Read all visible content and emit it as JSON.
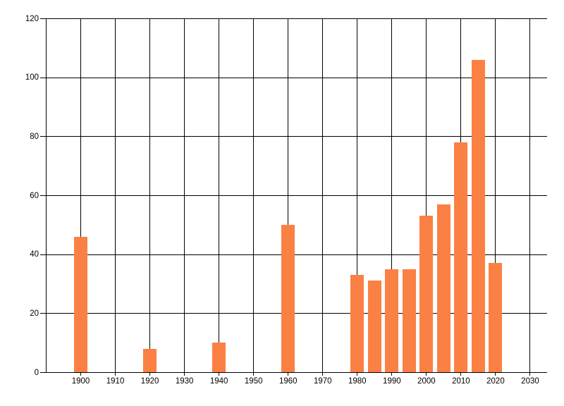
{
  "chart_data": {
    "type": "bar",
    "x": [
      1900,
      1920,
      1940,
      1960,
      1980,
      1985,
      1990,
      1995,
      2000,
      2005,
      2010,
      2015,
      2020
    ],
    "values": [
      46,
      8,
      10,
      50,
      33,
      31,
      35,
      35,
      53,
      57,
      78,
      106,
      37
    ],
    "title": "",
    "xlabel": "",
    "ylabel": "",
    "xlim": [
      1890,
      2035
    ],
    "ylim": [
      0,
      120
    ],
    "x_ticks": [
      1900,
      1910,
      1920,
      1930,
      1940,
      1950,
      1960,
      1970,
      1980,
      1990,
      2000,
      2010,
      2020,
      2030
    ],
    "y_ticks": [
      0,
      20,
      40,
      60,
      80,
      100,
      120
    ],
    "grid": true,
    "legend_position": "none",
    "bar_color": "#fb8043",
    "grid_color": "#000000",
    "axis_color": "#000000",
    "tick_label_color": "#000000",
    "background_color": "#ffffff"
  }
}
